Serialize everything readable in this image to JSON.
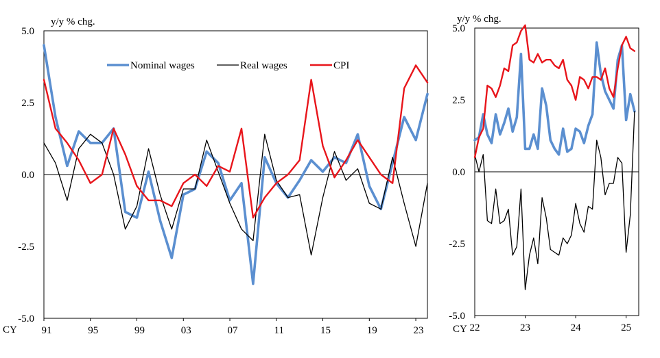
{
  "chart_data": [
    {
      "type": "line",
      "ylabel": "y/y % chg.",
      "ylim": [
        -5.0,
        5.0
      ],
      "y_ticks": [
        "5.0",
        "2.5",
        "0.0",
        "-2.5",
        "-5.0"
      ],
      "y_tick_values": [
        5.0,
        2.5,
        0.0,
        -2.5,
        -5.0
      ],
      "xlim": [
        1991,
        2024
      ],
      "x_prefix": "CY",
      "x_ticks": [
        "91",
        "95",
        "99",
        "03",
        "07",
        "11",
        "15",
        "19",
        "23"
      ],
      "x_tick_values": [
        1991,
        1995,
        1999,
        2003,
        2007,
        2011,
        2015,
        2019,
        2023
      ],
      "grid": false,
      "zero_line": true,
      "legend_position": "top-center",
      "x": [
        1991,
        1992,
        1993,
        1994,
        1995,
        1996,
        1997,
        1998,
        1999,
        2000,
        2001,
        2002,
        2003,
        2004,
        2005,
        2006,
        2007,
        2008,
        2009,
        2010,
        2011,
        2012,
        2013,
        2014,
        2015,
        2016,
        2017,
        2018,
        2019,
        2020,
        2021,
        2022,
        2023,
        2024
      ],
      "series": [
        {
          "name": "Nominal wages",
          "color": "#5b8fd0",
          "width": 3.6,
          "values": [
            4.5,
            2.0,
            0.3,
            1.5,
            1.1,
            1.1,
            1.6,
            -1.3,
            -1.5,
            0.1,
            -1.6,
            -2.9,
            -0.7,
            -0.5,
            0.8,
            0.4,
            -0.9,
            -0.3,
            -3.8,
            0.6,
            -0.3,
            -0.8,
            -0.2,
            0.5,
            0.1,
            0.6,
            0.4,
            1.4,
            -0.4,
            -1.2,
            0.4,
            2.0,
            1.2,
            2.8
          ]
        },
        {
          "name": "Real wages",
          "color": "#000000",
          "width": 1.3,
          "values": [
            1.1,
            0.4,
            -0.9,
            0.9,
            1.4,
            1.1,
            0.0,
            -1.9,
            -1.1,
            0.9,
            -0.7,
            -1.9,
            -0.5,
            -0.5,
            1.2,
            0.1,
            -1.0,
            -1.9,
            -2.3,
            1.4,
            -0.2,
            -0.8,
            -0.7,
            -2.8,
            -0.8,
            0.8,
            -0.2,
            0.2,
            -1.0,
            -1.2,
            0.6,
            -1.0,
            -2.5,
            -0.3
          ]
        },
        {
          "name": "CPI",
          "color": "#e8151b",
          "width": 2.4,
          "values": [
            3.3,
            1.6,
            1.1,
            0.5,
            -0.3,
            0.0,
            1.6,
            0.7,
            -0.4,
            -0.9,
            -0.9,
            -1.1,
            -0.3,
            0.0,
            -0.4,
            0.3,
            0.1,
            1.6,
            -1.5,
            -0.8,
            -0.3,
            0.0,
            0.5,
            3.3,
            1.0,
            -0.1,
            0.5,
            1.2,
            0.6,
            0.0,
            -0.3,
            3.0,
            3.8,
            3.2
          ]
        }
      ]
    },
    {
      "type": "line",
      "ylabel": "y/y % chg.",
      "ylim": [
        -5.0,
        5.0
      ],
      "y_ticks": [
        "5.0",
        "2.5",
        "0.0",
        "-2.5",
        "-5.0"
      ],
      "y_tick_values": [
        5.0,
        2.5,
        0.0,
        -2.5,
        -5.0
      ],
      "xlim": [
        2022,
        2025.25
      ],
      "x_prefix": "CY",
      "x_ticks": [
        "22",
        "23",
        "24",
        "25"
      ],
      "x_tick_values": [
        2022,
        2023,
        2024,
        2025
      ],
      "grid": false,
      "zero_line": true,
      "x_start": 2022,
      "x_step_months": 1,
      "series": [
        {
          "name": "Nominal wages",
          "color": "#5b8fd0",
          "width": 3.6,
          "values": [
            1.1,
            1.2,
            2.0,
            1.3,
            1.0,
            2.0,
            1.3,
            1.7,
            2.2,
            1.4,
            1.9,
            4.1,
            0.8,
            0.8,
            1.3,
            0.8,
            2.9,
            2.3,
            1.1,
            0.8,
            0.6,
            1.5,
            0.7,
            0.8,
            1.5,
            1.4,
            1.0,
            1.6,
            2.0,
            4.5,
            3.4,
            2.8,
            2.5,
            2.2,
            3.9,
            4.4,
            1.8,
            2.7,
            2.1
          ]
        },
        {
          "name": "Real wages",
          "color": "#000000",
          "width": 1.3,
          "values": [
            0.6,
            0.0,
            0.6,
            -1.7,
            -1.8,
            -0.6,
            -1.8,
            -1.7,
            -1.3,
            -2.9,
            -2.6,
            -0.6,
            -4.1,
            -2.9,
            -2.3,
            -3.2,
            -0.9,
            -1.6,
            -2.7,
            -2.8,
            -2.9,
            -2.3,
            -2.5,
            -2.2,
            -1.1,
            -1.8,
            -2.1,
            -1.2,
            -1.3,
            1.1,
            0.5,
            -0.8,
            -0.4,
            -0.4,
            0.5,
            0.3,
            -2.8,
            -1.5,
            2.1
          ]
        },
        {
          "name": "CPI",
          "color": "#e8151b",
          "width": 2.4,
          "values": [
            0.5,
            1.2,
            1.5,
            3.0,
            2.9,
            2.6,
            3.0,
            3.6,
            3.5,
            4.4,
            4.5,
            4.9,
            5.1,
            3.9,
            3.8,
            4.1,
            3.8,
            3.9,
            3.9,
            3.7,
            3.6,
            3.9,
            3.2,
            3.0,
            2.5,
            3.3,
            3.2,
            2.9,
            3.3,
            3.3,
            3.2,
            3.6,
            2.9,
            2.6,
            3.6,
            4.4,
            4.7,
            4.3,
            4.2
          ]
        }
      ]
    }
  ]
}
